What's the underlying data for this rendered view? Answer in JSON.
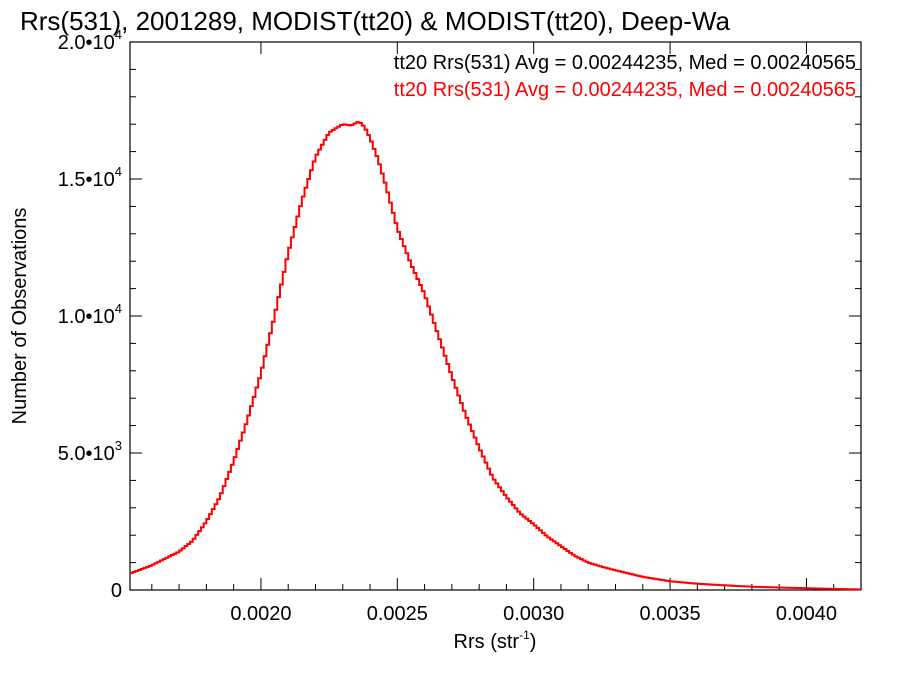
{
  "chart_data": {
    "type": "histogram",
    "title": "Rrs(531), 2001289, MODIST(tt20) & MODIST(tt20), Deep-Wa",
    "xlabel": "Rrs (str",
    "xlabel_sup": "-1",
    "xlabel_close": ")",
    "ylabel": "Number of Observations",
    "xlim": [
      0.00152,
      0.0042
    ],
    "ylim": [
      0,
      20000
    ],
    "xticks": [
      0.002,
      0.0025,
      0.003,
      0.0035,
      0.004
    ],
    "xtick_labels": [
      "0.0020",
      "0.0025",
      "0.0030",
      "0.0035",
      "0.0040"
    ],
    "yticks": [
      {
        "value": 0,
        "mant": "0",
        "exp": ""
      },
      {
        "value": 5000,
        "mant": "5.0•10",
        "exp": "3"
      },
      {
        "value": 10000,
        "mant": "1.0•10",
        "exp": "4"
      },
      {
        "value": 15000,
        "mant": "1.5•10",
        "exp": "4"
      },
      {
        "value": 20000,
        "mant": "2.0•10",
        "exp": "4"
      }
    ],
    "legend": [
      {
        "text": "tt20 Rrs(531) Avg = 0.00244235, Med = 0.00240565",
        "color": "#000000"
      },
      {
        "text": "tt20 Rrs(531) Avg = 0.00244235, Med = 0.00240565",
        "color": "#ff0000"
      }
    ],
    "series": [
      {
        "color": "#ff0000",
        "x": [
          0.00152,
          0.0016,
          0.00165,
          0.0017,
          0.00175,
          0.0018,
          0.00185,
          0.0019,
          0.00195,
          0.002,
          0.00205,
          0.0021,
          0.00215,
          0.0022,
          0.00225,
          0.0023,
          0.00233,
          0.00236,
          0.00238,
          0.0024,
          0.00243,
          0.00246,
          0.0025,
          0.00255,
          0.0026,
          0.00265,
          0.0027,
          0.00275,
          0.0028,
          0.00285,
          0.0029,
          0.00295,
          0.003,
          0.00305,
          0.0031,
          0.00315,
          0.0032,
          0.00325,
          0.0033,
          0.00335,
          0.0034,
          0.0035,
          0.0036,
          0.0037,
          0.0038,
          0.0039,
          0.004,
          0.0041,
          0.0042
        ],
        "y": [
          600,
          900,
          1150,
          1400,
          1800,
          2500,
          3400,
          4700,
          6200,
          7900,
          10000,
          12300,
          14200,
          15800,
          16700,
          17000,
          16950,
          17100,
          16900,
          16500,
          15700,
          14700,
          13200,
          11900,
          10800,
          9300,
          7800,
          6400,
          5200,
          4100,
          3400,
          2800,
          2400,
          1950,
          1600,
          1250,
          1000,
          850,
          720,
          600,
          480,
          320,
          230,
          170,
          120,
          90,
          65,
          40,
          20
        ]
      }
    ]
  }
}
